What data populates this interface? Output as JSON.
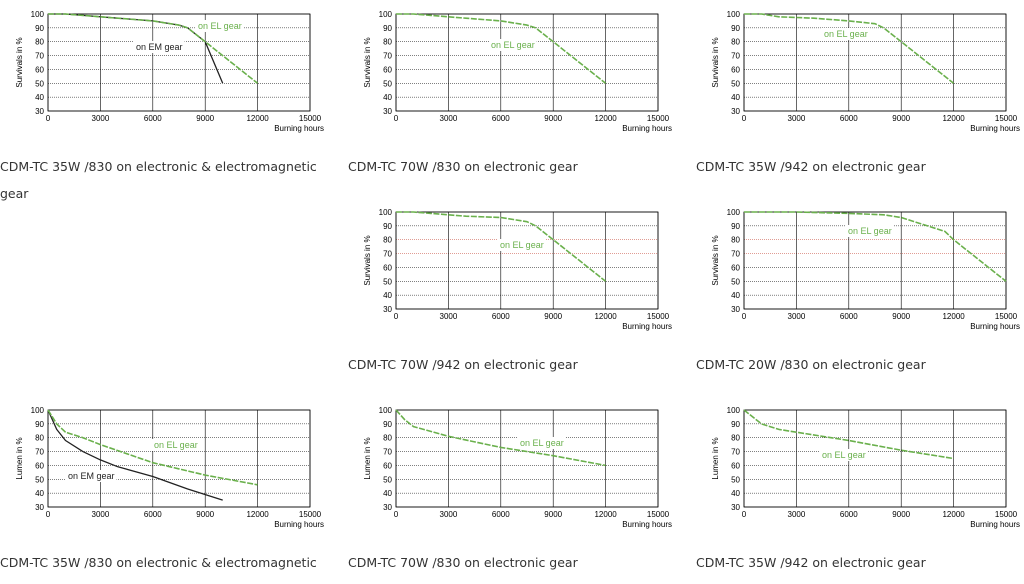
{
  "colors": {
    "el_gear": "#6ab04c",
    "em_gear": "#222222",
    "grid": "#000000",
    "special_grid": "#c0392b"
  },
  "panels": [
    {
      "caption": "CDM-TC 35W /830 on electronic & electromagnetic gear",
      "chart_data": {
        "type": "line",
        "title": "",
        "xlabel": "Burning hours",
        "ylabel": "Survivals in %",
        "xlim": [
          0,
          15000
        ],
        "ylim": [
          30,
          100
        ],
        "xticks": [
          0,
          3000,
          6000,
          9000,
          12000,
          15000
        ],
        "yticks": [
          100,
          90,
          80,
          70,
          60,
          50,
          40,
          30
        ],
        "series": [
          {
            "name": "on EL gear",
            "color_key": "el_gear",
            "x": [
              0,
              1000,
              2000,
              4000,
              6000,
              7500,
              8000,
              9000,
              10000,
              12000
            ],
            "y": [
              100,
              100,
              99,
              97,
              95,
              92,
              90,
              80,
              70,
              50
            ]
          },
          {
            "name": "on EM gear",
            "color_key": "em_gear",
            "x": [
              0,
              1000,
              2000,
              4000,
              6000,
              7500,
              8000,
              9000,
              10000
            ],
            "y": [
              100,
              100,
              99,
              97,
              95,
              92,
              90,
              80,
              50
            ]
          }
        ]
      }
    },
    {
      "caption": "CDM-TC 70W /830 on electronic gear",
      "chart_data": {
        "type": "line",
        "title": "",
        "xlabel": "Burning hours",
        "ylabel": "Survivals in %",
        "xlim": [
          0,
          15000
        ],
        "ylim": [
          30,
          100
        ],
        "xticks": [
          0,
          3000,
          6000,
          9000,
          12000,
          15000
        ],
        "yticks": [
          100,
          90,
          80,
          70,
          60,
          50,
          40,
          30
        ],
        "series": [
          {
            "name": "on EL gear",
            "color_key": "el_gear",
            "x": [
              0,
              1000,
              2000,
              4000,
              6000,
              7500,
              8000,
              9000,
              10000,
              12000
            ],
            "y": [
              100,
              100,
              99,
              97,
              95,
              92,
              90,
              80,
              70,
              50
            ]
          }
        ]
      }
    },
    {
      "caption": "CDM-TC 35W /942 on electronic gear",
      "chart_data": {
        "type": "line",
        "title": "",
        "xlabel": "Burning hours",
        "ylabel": "Survivals in %",
        "xlim": [
          0,
          15000
        ],
        "ylim": [
          30,
          100
        ],
        "xticks": [
          0,
          3000,
          6000,
          9000,
          12000,
          15000
        ],
        "yticks": [
          100,
          90,
          80,
          70,
          60,
          50,
          40,
          30
        ],
        "series": [
          {
            "name": "on EL gear",
            "color_key": "el_gear",
            "x": [
              0,
              1000,
              2000,
              4000,
              6000,
              7500,
              8000,
              9000,
              10000,
              12000
            ],
            "y": [
              100,
              100,
              98,
              97,
              95,
              93,
              90,
              80,
              70,
              50
            ]
          }
        ]
      }
    },
    {
      "caption": "CDM-TC 70W /942 on electronic gear",
      "chart_data": {
        "type": "line",
        "title": "",
        "xlabel": "Burning hours",
        "ylabel": "Survivals in %",
        "xlim": [
          0,
          15000
        ],
        "ylim": [
          30,
          100
        ],
        "xticks": [
          0,
          3000,
          6000,
          9000,
          12000,
          15000
        ],
        "yticks": [
          100,
          90,
          80,
          70,
          60,
          50,
          40,
          30
        ],
        "series": [
          {
            "name": "on EL gear",
            "color_key": "el_gear",
            "x": [
              0,
              1000,
              2000,
              4000,
              6000,
              7500,
              8000,
              9000,
              10000,
              12000
            ],
            "y": [
              100,
              100,
              99,
              97,
              96,
              93,
              90,
              80,
              70,
              50
            ]
          }
        ]
      }
    },
    {
      "caption": "CDM-TC 20W /830 on electronic gear",
      "chart_data": {
        "type": "line",
        "title": "",
        "xlabel": "Burning hours",
        "ylabel": "Survivals in %",
        "xlim": [
          0,
          15000
        ],
        "ylim": [
          30,
          100
        ],
        "xticks": [
          0,
          3000,
          6000,
          9000,
          12000,
          15000
        ],
        "yticks": [
          100,
          90,
          80,
          70,
          60,
          50,
          40,
          30
        ],
        "series": [
          {
            "name": "on EL gear",
            "color_key": "el_gear",
            "x": [
              0,
              3000,
              6000,
              8000,
              9000,
              10000,
              11500,
              12000,
              13000,
              15000
            ],
            "y": [
              100,
              100,
              99,
              98,
              96,
              92,
              86,
              80,
              70,
              50
            ]
          }
        ]
      }
    },
    {
      "caption": "CDM-TC 35W /830 on electronic & electromagnetic",
      "chart_data": {
        "type": "line",
        "title": "",
        "xlabel": "Burning hours",
        "ylabel": "Lumen in %",
        "xlim": [
          0,
          15000
        ],
        "ylim": [
          30,
          100
        ],
        "xticks": [
          0,
          3000,
          6000,
          9000,
          12000,
          15000
        ],
        "yticks": [
          100,
          90,
          80,
          70,
          60,
          50,
          40,
          30
        ],
        "series": [
          {
            "name": "on EL gear",
            "color_key": "el_gear",
            "x": [
              0,
              500,
              1000,
              2000,
              3000,
              6000,
              9000,
              12000
            ],
            "y": [
              100,
              90,
              84,
              80,
              75,
              62,
              53,
              46
            ]
          },
          {
            "name": "on EM gear",
            "color_key": "em_gear",
            "x": [
              0,
              500,
              1000,
              2000,
              3000,
              4000,
              6000,
              8000,
              10000
            ],
            "y": [
              100,
              86,
              78,
              70,
              64,
              59,
              52,
              43,
              35
            ]
          }
        ]
      }
    },
    {
      "caption": "CDM-TC 70W /830 on electronic gear",
      "chart_data": {
        "type": "line",
        "title": "",
        "xlabel": "Burning hours",
        "ylabel": "Lumen in %",
        "xlim": [
          0,
          15000
        ],
        "ylim": [
          30,
          100
        ],
        "xticks": [
          0,
          3000,
          6000,
          9000,
          12000,
          15000
        ],
        "yticks": [
          100,
          90,
          80,
          70,
          60,
          50,
          40,
          30
        ],
        "series": [
          {
            "name": "on EL gear",
            "color_key": "el_gear",
            "x": [
              0,
              500,
              1000,
              3000,
              6000,
              9000,
              12000
            ],
            "y": [
              100,
              93,
              88,
              81,
              73,
              67,
              60
            ]
          }
        ]
      }
    },
    {
      "caption": "CDM-TC 35W /942 on electronic gear",
      "chart_data": {
        "type": "line",
        "title": "",
        "xlabel": "Burning hours",
        "ylabel": "Lumen in %",
        "xlim": [
          0,
          15000
        ],
        "ylim": [
          30,
          100
        ],
        "xticks": [
          0,
          3000,
          6000,
          9000,
          12000,
          15000
        ],
        "yticks": [
          100,
          90,
          80,
          70,
          60,
          50,
          40,
          30
        ],
        "series": [
          {
            "name": "on EL gear",
            "color_key": "el_gear",
            "x": [
              0,
              500,
              1000,
              2000,
              3000,
              6000,
              9000,
              12000
            ],
            "y": [
              100,
              95,
              90,
              86,
              84,
              78,
              71,
              65
            ]
          }
        ]
      }
    }
  ]
}
